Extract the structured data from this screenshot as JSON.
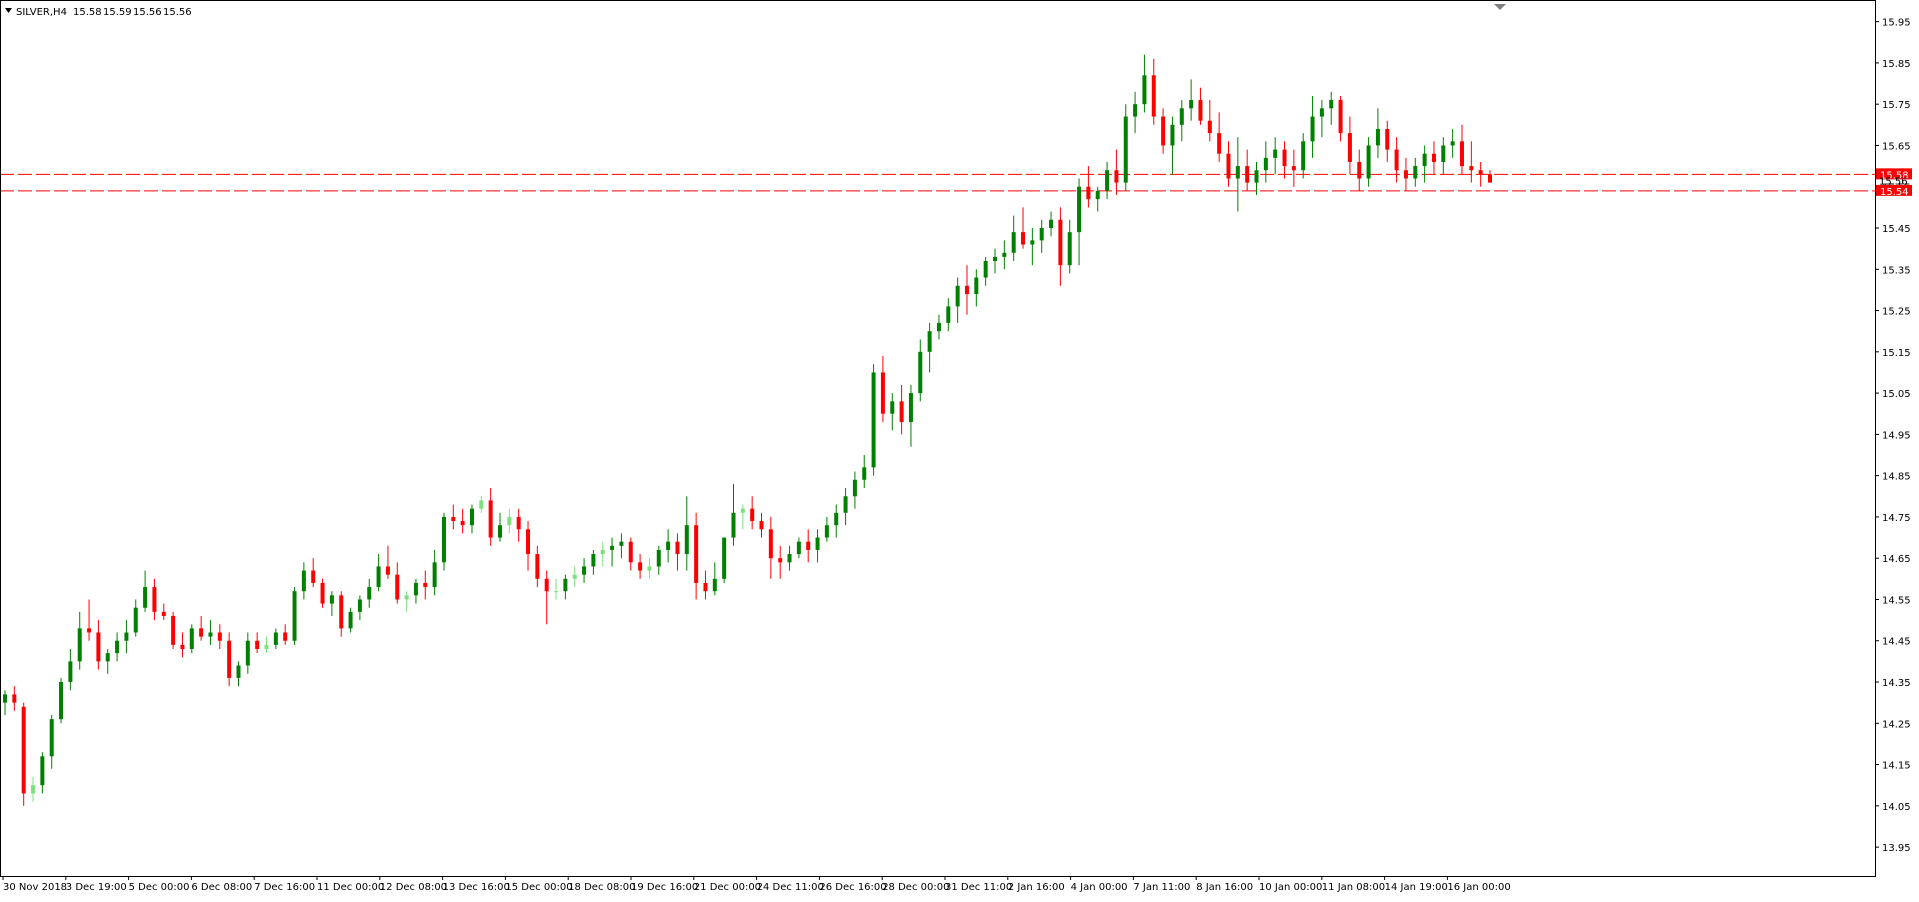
{
  "header": {
    "symbol": "SILVER,H4",
    "open": "15.58",
    "high": "15.59",
    "low": "15.56",
    "close": "15.56"
  },
  "colors": {
    "bull": "#008000",
    "bull_light": "#7ee07e",
    "bear": "#ff0000",
    "grid_line": "#000000",
    "level_line": "#ff0000",
    "label_bg": "#ff0000"
  },
  "chart_data": {
    "type": "candlestick",
    "title": "SILVER,H4",
    "ylim": [
      13.88,
      16.0
    ],
    "y_ticks": [
      "15.95",
      "15.85",
      "15.75",
      "15.65",
      "15.55",
      "15.45",
      "15.35",
      "15.25",
      "15.15",
      "15.05",
      "14.95",
      "14.85",
      "14.75",
      "14.65",
      "14.55",
      "14.45",
      "14.35",
      "14.25",
      "14.15",
      "14.05",
      "13.95"
    ],
    "x_tick_labels": [
      "30 Nov 2018",
      "3 Dec 19:00",
      "5 Dec 00:00",
      "6 Dec 08:00",
      "7 Dec 16:00",
      "11 Dec 00:00",
      "12 Dec 08:00",
      "13 Dec 16:00",
      "15 Dec 00:00",
      "18 Dec 08:00",
      "19 Dec 16:00",
      "21 Dec 00:00",
      "24 Dec 11:00",
      "26 Dec 16:00",
      "28 Dec 00:00",
      "31 Dec 11:00",
      "2 Jan 16:00",
      "4 Jan 00:00",
      "7 Jan 11:00",
      "8 Jan 16:00",
      "10 Jan 00:00",
      "11 Jan 08:00",
      "14 Jan 19:00",
      "16 Jan 00:00"
    ],
    "horizontal_levels": [
      {
        "value": 15.58,
        "label": "15.58"
      },
      {
        "value": 15.54,
        "label": "15.54"
      }
    ],
    "current_price_label": "15.56",
    "ohlc": [
      [
        14.3,
        14.33,
        14.27,
        14.32
      ],
      [
        14.32,
        14.34,
        14.28,
        14.3
      ],
      [
        14.29,
        14.3,
        14.05,
        14.08
      ],
      [
        14.08,
        14.12,
        14.06,
        14.1
      ],
      [
        14.1,
        14.18,
        14.08,
        14.17
      ],
      [
        14.17,
        14.27,
        14.14,
        14.26
      ],
      [
        14.26,
        14.36,
        14.25,
        14.35
      ],
      [
        14.35,
        14.43,
        14.33,
        14.4
      ],
      [
        14.4,
        14.52,
        14.38,
        14.48
      ],
      [
        14.48,
        14.55,
        14.45,
        14.47
      ],
      [
        14.47,
        14.5,
        14.38,
        14.4
      ],
      [
        14.4,
        14.43,
        14.37,
        14.42
      ],
      [
        14.42,
        14.47,
        14.4,
        14.45
      ],
      [
        14.45,
        14.5,
        14.42,
        14.47
      ],
      [
        14.47,
        14.55,
        14.46,
        14.53
      ],
      [
        14.53,
        14.62,
        14.52,
        14.58
      ],
      [
        14.58,
        14.6,
        14.5,
        14.52
      ],
      [
        14.52,
        14.54,
        14.5,
        14.51
      ],
      [
        14.51,
        14.52,
        14.43,
        14.44
      ],
      [
        14.44,
        14.47,
        14.41,
        14.43
      ],
      [
        14.43,
        14.49,
        14.42,
        14.48
      ],
      [
        14.48,
        14.51,
        14.45,
        14.46
      ],
      [
        14.46,
        14.5,
        14.44,
        14.47
      ],
      [
        14.47,
        14.49,
        14.43,
        14.45
      ],
      [
        14.45,
        14.47,
        14.34,
        14.36
      ],
      [
        14.36,
        14.4,
        14.34,
        14.39
      ],
      [
        14.39,
        14.47,
        14.37,
        14.45
      ],
      [
        14.45,
        14.47,
        14.42,
        14.43
      ],
      [
        14.43,
        14.46,
        14.42,
        14.44
      ],
      [
        14.44,
        14.48,
        14.43,
        14.47
      ],
      [
        14.47,
        14.49,
        14.44,
        14.45
      ],
      [
        14.45,
        14.58,
        14.44,
        14.57
      ],
      [
        14.57,
        14.64,
        14.55,
        14.62
      ],
      [
        14.62,
        14.65,
        14.58,
        14.59
      ],
      [
        14.59,
        14.6,
        14.53,
        14.54
      ],
      [
        14.54,
        14.57,
        14.51,
        14.56
      ],
      [
        14.56,
        14.57,
        14.46,
        14.48
      ],
      [
        14.48,
        14.53,
        14.47,
        14.52
      ],
      [
        14.52,
        14.56,
        14.5,
        14.55
      ],
      [
        14.55,
        14.6,
        14.53,
        14.58
      ],
      [
        14.58,
        14.66,
        14.57,
        14.63
      ],
      [
        14.63,
        14.68,
        14.6,
        14.61
      ],
      [
        14.61,
        14.64,
        14.54,
        14.55
      ],
      [
        14.55,
        14.57,
        14.52,
        14.56
      ],
      [
        14.56,
        14.6,
        14.54,
        14.59
      ],
      [
        14.59,
        14.62,
        14.55,
        14.58
      ],
      [
        14.58,
        14.67,
        14.56,
        14.64
      ],
      [
        14.64,
        14.76,
        14.62,
        14.75
      ],
      [
        14.75,
        14.78,
        14.72,
        14.74
      ],
      [
        14.74,
        14.77,
        14.71,
        14.73
      ],
      [
        14.73,
        14.78,
        14.71,
        14.77
      ],
      [
        14.77,
        14.8,
        14.76,
        14.79
      ],
      [
        14.79,
        14.82,
        14.68,
        14.7
      ],
      [
        14.7,
        14.76,
        14.69,
        14.73
      ],
      [
        14.73,
        14.77,
        14.71,
        14.75
      ],
      [
        14.75,
        14.77,
        14.69,
        14.72
      ],
      [
        14.72,
        14.74,
        14.62,
        14.66
      ],
      [
        14.66,
        14.68,
        14.58,
        14.6
      ],
      [
        14.6,
        14.62,
        14.49,
        14.57
      ],
      [
        14.57,
        14.6,
        14.55,
        14.57
      ],
      [
        14.57,
        14.61,
        14.55,
        14.6
      ],
      [
        14.6,
        14.63,
        14.58,
        14.61
      ],
      [
        14.61,
        14.65,
        14.59,
        14.63
      ],
      [
        14.63,
        14.67,
        14.61,
        14.66
      ],
      [
        14.66,
        14.69,
        14.63,
        14.67
      ],
      [
        14.67,
        14.7,
        14.63,
        14.68
      ],
      [
        14.68,
        14.71,
        14.65,
        14.69
      ],
      [
        14.69,
        14.7,
        14.62,
        14.64
      ],
      [
        14.64,
        14.66,
        14.6,
        14.62
      ],
      [
        14.62,
        14.65,
        14.6,
        14.63
      ],
      [
        14.63,
        14.68,
        14.61,
        14.67
      ],
      [
        14.67,
        14.72,
        14.64,
        14.69
      ],
      [
        14.69,
        14.71,
        14.62,
        14.66
      ],
      [
        14.66,
        14.8,
        14.62,
        14.73
      ],
      [
        14.73,
        14.76,
        14.55,
        14.59
      ],
      [
        14.59,
        14.62,
        14.55,
        14.57
      ],
      [
        14.57,
        14.64,
        14.56,
        14.6
      ],
      [
        14.6,
        14.7,
        14.59,
        14.7
      ],
      [
        14.7,
        14.83,
        14.68,
        14.76
      ],
      [
        14.76,
        14.78,
        14.72,
        14.77
      ],
      [
        14.77,
        14.8,
        14.72,
        14.74
      ],
      [
        14.74,
        14.76,
        14.7,
        14.72
      ],
      [
        14.72,
        14.75,
        14.6,
        14.65
      ],
      [
        14.65,
        14.68,
        14.6,
        14.64
      ],
      [
        14.64,
        14.68,
        14.62,
        14.66
      ],
      [
        14.66,
        14.7,
        14.65,
        14.69
      ],
      [
        14.69,
        14.72,
        14.64,
        14.67
      ],
      [
        14.67,
        14.72,
        14.64,
        14.7
      ],
      [
        14.7,
        14.75,
        14.69,
        14.73
      ],
      [
        14.73,
        14.78,
        14.7,
        14.76
      ],
      [
        14.76,
        14.82,
        14.73,
        14.8
      ],
      [
        14.8,
        14.86,
        14.77,
        14.84
      ],
      [
        14.84,
        14.9,
        14.82,
        14.87
      ],
      [
        14.87,
        15.12,
        14.85,
        15.1
      ],
      [
        15.1,
        15.14,
        14.98,
        15.0
      ],
      [
        15.0,
        15.05,
        14.96,
        15.03
      ],
      [
        15.03,
        15.07,
        14.95,
        14.98
      ],
      [
        14.98,
        15.07,
        14.92,
        15.05
      ],
      [
        15.05,
        15.18,
        15.03,
        15.15
      ],
      [
        15.15,
        15.22,
        15.1,
        15.2
      ],
      [
        15.2,
        15.24,
        15.18,
        15.22
      ],
      [
        15.22,
        15.28,
        15.2,
        15.26
      ],
      [
        15.26,
        15.33,
        15.22,
        15.31
      ],
      [
        15.31,
        15.36,
        15.24,
        15.29
      ],
      [
        15.29,
        15.35,
        15.26,
        15.33
      ],
      [
        15.33,
        15.38,
        15.31,
        15.37
      ],
      [
        15.37,
        15.4,
        15.34,
        15.38
      ],
      [
        15.38,
        15.42,
        15.35,
        15.39
      ],
      [
        15.39,
        15.48,
        15.37,
        15.44
      ],
      [
        15.44,
        15.5,
        15.4,
        15.41
      ],
      [
        15.41,
        15.45,
        15.36,
        15.42
      ],
      [
        15.42,
        15.47,
        15.39,
        15.45
      ],
      [
        15.45,
        15.49,
        15.43,
        15.47
      ],
      [
        15.47,
        15.5,
        15.31,
        15.36
      ],
      [
        15.36,
        15.47,
        15.34,
        15.44
      ],
      [
        15.44,
        15.57,
        15.36,
        15.55
      ],
      [
        15.55,
        15.6,
        15.5,
        15.52
      ],
      [
        15.52,
        15.55,
        15.49,
        15.54
      ],
      [
        15.54,
        15.61,
        15.52,
        15.59
      ],
      [
        15.59,
        15.64,
        15.53,
        15.56
      ],
      [
        15.56,
        15.75,
        15.54,
        15.72
      ],
      [
        15.72,
        15.78,
        15.68,
        15.75
      ],
      [
        15.75,
        15.87,
        15.73,
        15.82
      ],
      [
        15.82,
        15.86,
        15.7,
        15.72
      ],
      [
        15.72,
        15.74,
        15.63,
        15.65
      ],
      [
        15.65,
        15.72,
        15.58,
        15.7
      ],
      [
        15.7,
        15.76,
        15.66,
        15.74
      ],
      [
        15.74,
        15.81,
        15.71,
        15.76
      ],
      [
        15.76,
        15.79,
        15.7,
        15.71
      ],
      [
        15.71,
        15.76,
        15.66,
        15.68
      ],
      [
        15.68,
        15.73,
        15.61,
        15.63
      ],
      [
        15.63,
        15.66,
        15.55,
        15.57
      ],
      [
        15.57,
        15.67,
        15.49,
        15.6
      ],
      [
        15.6,
        15.64,
        15.54,
        15.56
      ],
      [
        15.56,
        15.61,
        15.53,
        15.59
      ],
      [
        15.59,
        15.66,
        15.56,
        15.62
      ],
      [
        15.62,
        15.67,
        15.58,
        15.64
      ],
      [
        15.64,
        15.66,
        15.57,
        15.6
      ],
      [
        15.6,
        15.64,
        15.55,
        15.59
      ],
      [
        15.59,
        15.68,
        15.57,
        15.66
      ],
      [
        15.66,
        15.77,
        15.62,
        15.72
      ],
      [
        15.72,
        15.76,
        15.67,
        15.74
      ],
      [
        15.74,
        15.78,
        15.7,
        15.76
      ],
      [
        15.76,
        15.77,
        15.66,
        15.68
      ],
      [
        15.68,
        15.72,
        15.58,
        15.61
      ],
      [
        15.61,
        15.64,
        15.54,
        15.57
      ],
      [
        15.57,
        15.67,
        15.55,
        15.65
      ],
      [
        15.65,
        15.74,
        15.62,
        15.69
      ],
      [
        15.69,
        15.71,
        15.61,
        15.64
      ],
      [
        15.64,
        15.67,
        15.56,
        15.59
      ],
      [
        15.59,
        15.62,
        15.54,
        15.57
      ],
      [
        15.57,
        15.62,
        15.55,
        15.6
      ],
      [
        15.6,
        15.65,
        15.56,
        15.63
      ],
      [
        15.63,
        15.66,
        15.58,
        15.61
      ],
      [
        15.61,
        15.67,
        15.58,
        15.65
      ],
      [
        15.65,
        15.69,
        15.62,
        15.66
      ],
      [
        15.66,
        15.7,
        15.58,
        15.6
      ],
      [
        15.6,
        15.66,
        15.56,
        15.59
      ],
      [
        15.59,
        15.61,
        15.55,
        15.58
      ],
      [
        15.58,
        15.59,
        15.56,
        15.56
      ]
    ]
  }
}
